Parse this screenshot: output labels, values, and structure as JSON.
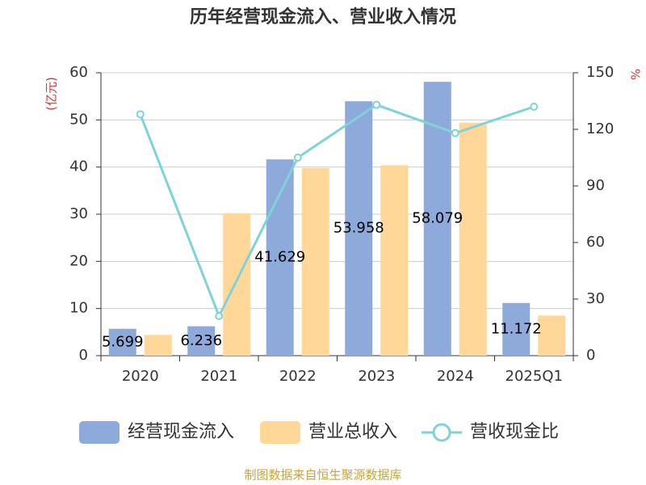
{
  "chart_data": {
    "type": "bar",
    "title": "历年经营现金流入、营业收入情况",
    "y_label": "(亿元)",
    "y2_label": "%",
    "categories": [
      "2020",
      "2021",
      "2022",
      "2023",
      "2024",
      "2025Q1"
    ],
    "series": [
      {
        "name": "经营现金流入",
        "type": "bar",
        "color": "#8eaadb",
        "values": [
          5.699,
          6.236,
          41.629,
          53.958,
          58.079,
          11.172
        ],
        "show_labels": true
      },
      {
        "name": "营业总收入",
        "type": "bar",
        "color": "#ffd899",
        "values": [
          4.4,
          30.2,
          39.8,
          40.4,
          49.4,
          8.5
        ]
      },
      {
        "name": "营收现金比",
        "type": "line",
        "axis": "y2",
        "color": "#7fd3d6",
        "values": [
          128,
          21,
          105,
          133,
          118,
          132
        ]
      }
    ],
    "ylim": [
      0,
      60
    ],
    "yticks": [
      0,
      10,
      20,
      30,
      40,
      50,
      60
    ],
    "y2lim": [
      0,
      150
    ],
    "y2ticks": [
      0,
      30,
      60,
      90,
      120,
      150
    ],
    "grid": true,
    "source": "制图数据来自恒生聚源数据库"
  }
}
